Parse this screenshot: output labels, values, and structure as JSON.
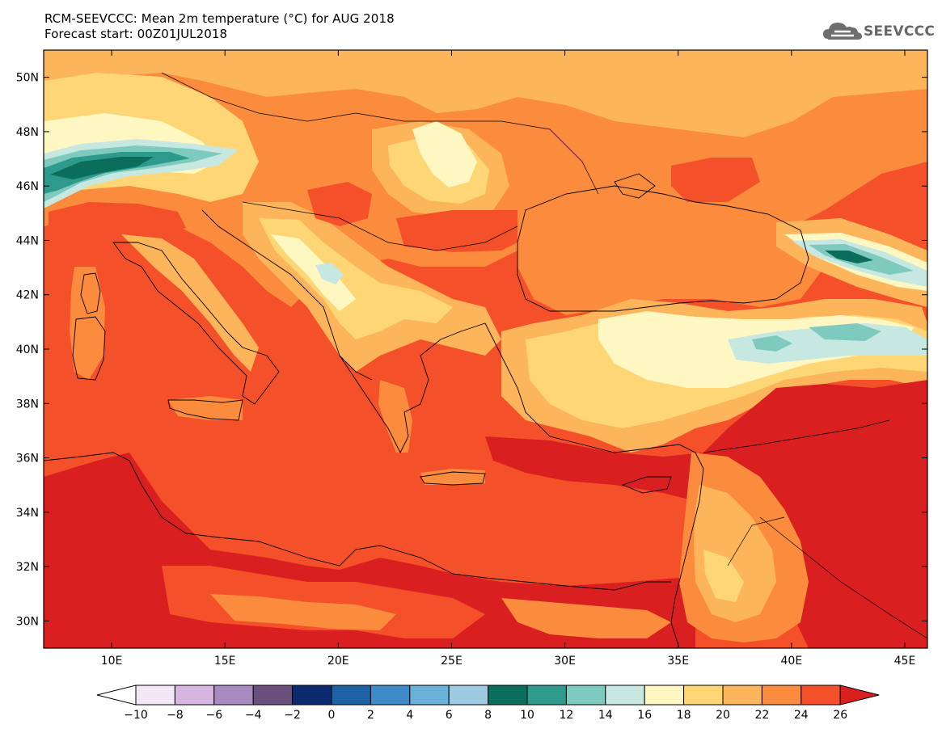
{
  "title": {
    "line1": "RCM-SEEVCCC: Mean 2m temperature (°C) for AUG 2018",
    "line2": "Forecast start: 00Z01JUL2018"
  },
  "logo": {
    "text": "SEEVCCC",
    "icon": "cloud-logo-icon"
  },
  "map": {
    "lon_range": [
      7,
      46
    ],
    "lat_range": [
      29,
      51
    ],
    "lat_ticks": [
      {
        "value": 50,
        "label": "50N"
      },
      {
        "value": 48,
        "label": "48N"
      },
      {
        "value": 46,
        "label": "46N"
      },
      {
        "value": 44,
        "label": "44N"
      },
      {
        "value": 42,
        "label": "42N"
      },
      {
        "value": 40,
        "label": "40N"
      },
      {
        "value": 38,
        "label": "38N"
      },
      {
        "value": 36,
        "label": "36N"
      },
      {
        "value": 34,
        "label": "34N"
      },
      {
        "value": 32,
        "label": "32N"
      },
      {
        "value": 30,
        "label": "30N"
      }
    ],
    "lon_ticks": [
      {
        "value": 10,
        "label": "10E"
      },
      {
        "value": 15,
        "label": "15E"
      },
      {
        "value": 20,
        "label": "20E"
      },
      {
        "value": 25,
        "label": "25E"
      },
      {
        "value": 30,
        "label": "30E"
      },
      {
        "value": 35,
        "label": "35E"
      },
      {
        "value": 40,
        "label": "40E"
      },
      {
        "value": 45,
        "label": "45E"
      }
    ]
  },
  "colorbar": {
    "labels": [
      "-10",
      "-8",
      "-6",
      "-4",
      "-2",
      "0",
      "2",
      "4",
      "6",
      "8",
      "10",
      "12",
      "14",
      "16",
      "18",
      "20",
      "22",
      "24",
      "26"
    ],
    "colors": [
      "#ffffff",
      "#f2e6f7",
      "#d7b6e2",
      "#a98bc2",
      "#6b4f7d",
      "#0b2a6f",
      "#1d62a5",
      "#3d8cc7",
      "#6ab1d9",
      "#9fcae4",
      "#0b6d5b",
      "#2e9a8c",
      "#7fcabf",
      "#c6e8e1",
      "#fff7c2",
      "#ffd676",
      "#fdb55b",
      "#fb8c3e",
      "#f4512a",
      "#d91f20"
    ]
  },
  "palette": {
    "t10": "#0b6d5b",
    "t12": "#2e9a8c",
    "t14": "#7fcabf",
    "t16": "#c6e8e1",
    "t18": "#fff7c2",
    "t20": "#ffd676",
    "t22": "#fdb55b",
    "t24": "#fb8c3e",
    "t26": "#f4512a",
    "t28": "#d91f20"
  }
}
